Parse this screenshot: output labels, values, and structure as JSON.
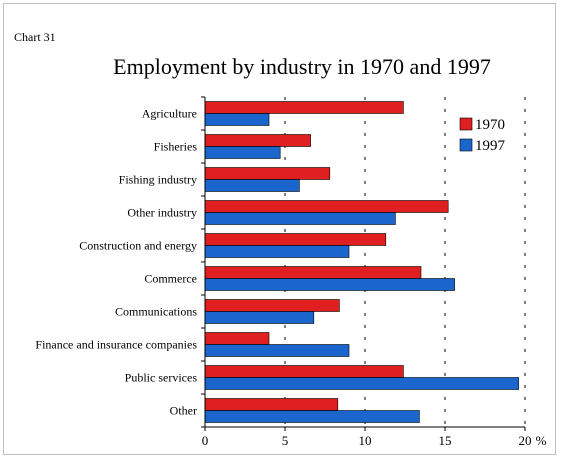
{
  "header": {
    "chart_number": "Chart 31"
  },
  "chart_data": {
    "type": "bar",
    "orientation": "horizontal",
    "title": "Employment by industry in 1970 and 1997",
    "xlabel": "",
    "ylabel": "",
    "unit_label": "%",
    "categories": [
      "Agriculture",
      "Fisheries",
      "Fishing industry",
      "Other industry",
      "Construction and energy",
      "Commerce",
      "Communications",
      "Finance and insurance companies",
      "Public services",
      "Other"
    ],
    "series": [
      {
        "name": "1970",
        "color": "#e02020",
        "values": [
          12.4,
          6.6,
          7.8,
          15.2,
          11.3,
          13.5,
          8.4,
          4.0,
          12.4,
          8.3
        ]
      },
      {
        "name": "1997",
        "color": "#1a66cc",
        "values": [
          4.0,
          4.7,
          5.9,
          11.9,
          9.0,
          15.6,
          6.8,
          9.0,
          19.6,
          13.4
        ]
      }
    ],
    "xlim": [
      0,
      20
    ],
    "xticks": [
      "0",
      "5",
      "10",
      "15",
      "20"
    ],
    "grid": "dashed vertical",
    "legend_position": "top-right"
  }
}
